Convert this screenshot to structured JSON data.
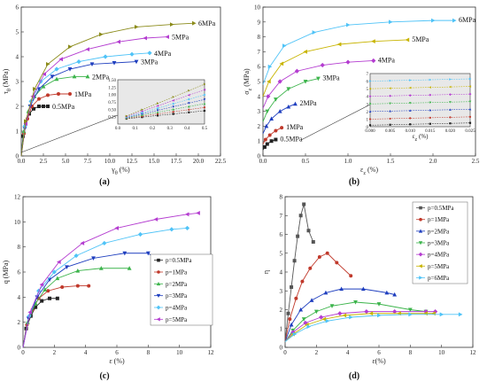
{
  "panels": [
    {
      "id": "a",
      "label": "(a)",
      "type": "line",
      "xlabel": "γ_θ (%)",
      "ylabel": "τ_θ (MPa)",
      "xlim": [
        0,
        22.5
      ],
      "ylim": [
        0,
        6
      ],
      "xticks": [
        "0.0",
        "2.5",
        "5.0",
        "7.5",
        "10.0",
        "12.5",
        "15.0",
        "17.5",
        "20.0",
        "22.5"
      ],
      "xtickv": [
        0,
        2.5,
        5,
        7.5,
        10,
        12.5,
        15,
        17.5,
        20,
        22.5
      ],
      "yticks": [
        "0",
        "1",
        "2",
        "3",
        "4",
        "5",
        "6"
      ],
      "ytickv": [
        0,
        1,
        2,
        3,
        4,
        5,
        6
      ],
      "series": [
        {
          "name": "0.5MPa",
          "color": "#222222",
          "marker": "square",
          "x": [
            0,
            0.2,
            0.5,
            0.9,
            1.4,
            2.0,
            2.5,
            3.0
          ],
          "y": [
            0,
            0.8,
            1.3,
            1.7,
            1.9,
            2.0,
            2.0,
            2.0
          ]
        },
        {
          "name": "1MPa",
          "color": "#c0392b",
          "marker": "circle",
          "x": [
            0,
            0.3,
            0.7,
            1.2,
            2.0,
            3.0,
            4.2,
            5.5
          ],
          "y": [
            0,
            0.9,
            1.5,
            2.0,
            2.3,
            2.45,
            2.5,
            2.5
          ]
        },
        {
          "name": "2MPa",
          "color": "#3cb44b",
          "marker": "triangle",
          "x": [
            0,
            0.3,
            0.8,
            1.5,
            2.5,
            4.0,
            6.0,
            7.5
          ],
          "y": [
            0,
            1.0,
            1.8,
            2.4,
            2.8,
            3.1,
            3.2,
            3.2
          ]
        },
        {
          "name": "3MPa",
          "color": "#1f3fbf",
          "marker": "triangle-down",
          "x": [
            0,
            0.4,
            1.0,
            2.0,
            3.5,
            5.5,
            8.0,
            10.5,
            13.0
          ],
          "y": [
            0,
            1.1,
            2.0,
            2.7,
            3.2,
            3.5,
            3.7,
            3.75,
            3.8
          ]
        },
        {
          "name": "4MPa",
          "color": "#4fc3f7",
          "marker": "diamond",
          "x": [
            0,
            0.4,
            1.1,
            2.2,
            4.0,
            6.5,
            9.5,
            12.5,
            14.5
          ],
          "y": [
            0,
            1.2,
            2.2,
            3.0,
            3.5,
            3.8,
            4.0,
            4.1,
            4.15
          ]
        },
        {
          "name": "5MPa",
          "color": "#b43cd0",
          "marker": "triangle-left",
          "x": [
            0,
            0.5,
            1.3,
            2.6,
            4.5,
            7.5,
            11.0,
            14.0,
            16.5
          ],
          "y": [
            0,
            1.3,
            2.4,
            3.3,
            3.9,
            4.3,
            4.6,
            4.75,
            4.8
          ]
        },
        {
          "name": "6MPa",
          "color": "#8b8b1a",
          "marker": "triangle-right",
          "x": [
            0,
            0.5,
            1.5,
            3.0,
            5.5,
            9.0,
            13.0,
            17.0,
            19.5
          ],
          "y": [
            0,
            1.4,
            2.7,
            3.7,
            4.4,
            4.9,
            5.2,
            5.3,
            5.35
          ]
        }
      ],
      "inset": {
        "xlim": [
          0,
          0.5
        ],
        "ylim": [
          0,
          1.5
        ],
        "xticks": [
          "0.0",
          "0.1",
          "0.2",
          "0.3",
          "0.4",
          "0.5"
        ],
        "xtickv": [
          0,
          0.1,
          0.2,
          0.3,
          0.4,
          0.5
        ],
        "yticks": [
          "0.25",
          "0.50",
          "0.75",
          "1.00",
          "1.25",
          "1.50"
        ],
        "ytickv": [
          0.25,
          0.5,
          0.75,
          1.0,
          1.25,
          1.5
        ]
      }
    },
    {
      "id": "b",
      "label": "(b)",
      "type": "line",
      "xlabel": "ε_z (%)",
      "ylabel": "σ_z (MPa)",
      "xlim": [
        0,
        2.5
      ],
      "ylim": [
        0,
        10
      ],
      "xticks": [
        "0.0",
        "0.5",
        "1.0",
        "1.5",
        "2.0",
        "2.5"
      ],
      "xtickv": [
        0,
        0.5,
        1.0,
        1.5,
        2.0,
        2.5
      ],
      "yticks": [
        "0",
        "1",
        "2",
        "3",
        "4",
        "5",
        "6",
        "7",
        "8",
        "9",
        "10"
      ],
      "ytickv": [
        0,
        1,
        2,
        3,
        4,
        5,
        6,
        7,
        8,
        9,
        10
      ],
      "series": [
        {
          "name": "0.5MPa",
          "color": "#222222",
          "marker": "square",
          "x": [
            0,
            0.02,
            0.05,
            0.1,
            0.15
          ],
          "y": [
            0.4,
            0.6,
            0.8,
            1.0,
            1.1
          ]
        },
        {
          "name": "1MPa",
          "color": "#c0392b",
          "marker": "circle",
          "x": [
            0,
            0.03,
            0.08,
            0.15,
            0.22
          ],
          "y": [
            0.8,
            1.1,
            1.4,
            1.7,
            1.9
          ]
        },
        {
          "name": "2MPa",
          "color": "#1f3fbf",
          "marker": "triangle",
          "x": [
            0,
            0.04,
            0.1,
            0.2,
            0.3,
            0.38
          ],
          "y": [
            1.5,
            2.0,
            2.5,
            3.0,
            3.3,
            3.5
          ]
        },
        {
          "name": "3MPa",
          "color": "#3cb44b",
          "marker": "triangle-down",
          "x": [
            0,
            0.05,
            0.15,
            0.3,
            0.5,
            0.65
          ],
          "y": [
            2.3,
            3.0,
            3.8,
            4.5,
            5.0,
            5.2
          ]
        },
        {
          "name": "4MPa",
          "color": "#b43cd0",
          "marker": "diamond",
          "x": [
            0,
            0.06,
            0.2,
            0.4,
            0.7,
            1.0,
            1.3
          ],
          "y": [
            3.2,
            4.0,
            5.0,
            5.7,
            6.1,
            6.3,
            6.4
          ]
        },
        {
          "name": "5MPa",
          "color": "#c8b400",
          "marker": "triangle-left",
          "x": [
            0,
            0.07,
            0.22,
            0.5,
            0.9,
            1.3,
            1.7
          ],
          "y": [
            4.0,
            5.0,
            6.2,
            7.0,
            7.5,
            7.7,
            7.8
          ]
        },
        {
          "name": "6MPa",
          "color": "#4fc3f7",
          "marker": "triangle-right",
          "x": [
            0,
            0.08,
            0.25,
            0.6,
            1.0,
            1.5,
            2.0,
            2.25
          ],
          "y": [
            4.8,
            6.0,
            7.4,
            8.3,
            8.8,
            9.0,
            9.1,
            9.1
          ]
        }
      ],
      "inset": {
        "xlim": [
          0,
          0.025
        ],
        "ylim": [
          0,
          7
        ],
        "xticks": [
          "0.000",
          "0.005",
          "0.010",
          "0.015",
          "0.020",
          "0.025"
        ],
        "xtickv": [
          0,
          0.005,
          0.01,
          0.015,
          0.02,
          0.025
        ],
        "yticks": [
          "0",
          "1",
          "2",
          "3",
          "4",
          "5",
          "6",
          "7"
        ],
        "ytickv": [
          0,
          1,
          2,
          3,
          4,
          5,
          6,
          7
        ],
        "xlabel": "ε_z (%)"
      }
    },
    {
      "id": "c",
      "label": "(c)",
      "type": "line",
      "xlabel": "ε (%)",
      "ylabel": "q (MPa)",
      "xlim": [
        0,
        12
      ],
      "ylim": [
        0,
        12
      ],
      "xticks": [
        "0",
        "2",
        "4",
        "6",
        "8",
        "10",
        "12"
      ],
      "xtickv": [
        0,
        2,
        4,
        6,
        8,
        10,
        12
      ],
      "yticks": [
        "0",
        "2",
        "4",
        "6",
        "8",
        "10",
        "12"
      ],
      "ytickv": [
        0,
        2,
        4,
        6,
        8,
        10,
        12
      ],
      "series": [
        {
          "name": "p=0.5MPa",
          "color": "#222222",
          "marker": "square",
          "x": [
            0,
            0.2,
            0.5,
            0.8,
            1.2,
            1.7,
            2.2
          ],
          "y": [
            0,
            1.5,
            2.5,
            3.2,
            3.7,
            3.9,
            3.9
          ]
        },
        {
          "name": "p=1MPa",
          "color": "#c0392b",
          "marker": "circle",
          "x": [
            0,
            0.25,
            0.6,
            1.0,
            1.6,
            2.5,
            3.5,
            4.2
          ],
          "y": [
            0,
            1.8,
            3.0,
            3.9,
            4.5,
            4.8,
            4.9,
            4.9
          ]
        },
        {
          "name": "p=2MPa",
          "color": "#3cb44b",
          "marker": "triangle",
          "x": [
            0,
            0.3,
            0.8,
            1.4,
            2.2,
            3.5,
            5.0,
            6.8
          ],
          "y": [
            0,
            2.0,
            3.5,
            4.6,
            5.5,
            6.1,
            6.3,
            6.3
          ]
        },
        {
          "name": "p=3MPa",
          "color": "#1f3fbf",
          "marker": "triangle-down",
          "x": [
            0,
            0.35,
            0.9,
            1.7,
            2.8,
            4.5,
            6.5,
            8.0,
            8.8
          ],
          "y": [
            0,
            2.3,
            4.0,
            5.4,
            6.4,
            7.1,
            7.5,
            7.5,
            6.8
          ]
        },
        {
          "name": "p=4MPa",
          "color": "#4fc3f7",
          "marker": "diamond",
          "x": [
            0,
            0.4,
            1.0,
            2.0,
            3.4,
            5.2,
            7.5,
            9.5,
            10.5
          ],
          "y": [
            0,
            2.5,
            4.5,
            6.0,
            7.3,
            8.3,
            9.0,
            9.4,
            9.5
          ]
        },
        {
          "name": "p=5MPa",
          "color": "#b43cd0",
          "marker": "triangle-left",
          "x": [
            0,
            0.45,
            1.2,
            2.3,
            3.8,
            6.0,
            8.5,
            10.5,
            11.2
          ],
          "y": [
            0,
            2.8,
            5.0,
            6.8,
            8.3,
            9.5,
            10.2,
            10.6,
            10.7
          ]
        }
      ]
    },
    {
      "id": "d",
      "label": "(d)",
      "type": "line",
      "xlabel": "ε(%)",
      "ylabel": "η",
      "xlim": [
        0,
        12
      ],
      "ylim": [
        0,
        8
      ],
      "xticks": [
        "0",
        "2",
        "4",
        "6",
        "8",
        "10",
        "12"
      ],
      "xtickv": [
        0,
        2,
        4,
        6,
        8,
        10,
        12
      ],
      "yticks": [
        "0",
        "1",
        "2",
        "3",
        "4",
        "5",
        "6",
        "7",
        "8"
      ],
      "ytickv": [
        0,
        1,
        2,
        3,
        4,
        5,
        6,
        7,
        8
      ],
      "series": [
        {
          "name": "p=0.5MPa",
          "color": "#555555",
          "marker": "square",
          "x": [
            0,
            0.2,
            0.4,
            0.6,
            0.8,
            1.0,
            1.2,
            1.5,
            1.8
          ],
          "y": [
            0.3,
            1.8,
            3.2,
            4.6,
            5.9,
            7.0,
            7.6,
            6.2,
            5.6
          ]
        },
        {
          "name": "p=1MPa",
          "color": "#c0392b",
          "marker": "circle",
          "x": [
            0,
            0.3,
            0.7,
            1.1,
            1.6,
            2.2,
            2.7,
            3.3,
            4.2
          ],
          "y": [
            0.3,
            1.5,
            2.6,
            3.5,
            4.2,
            4.8,
            5.0,
            4.5,
            3.8
          ]
        },
        {
          "name": "p=2MPa",
          "color": "#1f3fbf",
          "marker": "triangle",
          "x": [
            0,
            0.4,
            1.0,
            1.7,
            2.6,
            3.6,
            5.0,
            6.5,
            7.0
          ],
          "y": [
            0.3,
            1.2,
            2.0,
            2.5,
            2.9,
            3.1,
            3.1,
            2.9,
            2.8
          ]
        },
        {
          "name": "p=3MPa",
          "color": "#3cb44b",
          "marker": "triangle-down",
          "x": [
            0,
            0.5,
            1.2,
            2.0,
            3.0,
            4.5,
            6.0,
            8.0,
            9.0
          ],
          "y": [
            0.3,
            0.9,
            1.5,
            1.9,
            2.2,
            2.4,
            2.3,
            2.0,
            1.9
          ]
        },
        {
          "name": "p=4MPa",
          "color": "#b43cd0",
          "marker": "diamond",
          "x": [
            0,
            0.5,
            1.3,
            2.3,
            3.5,
            5.2,
            7.0,
            9.0,
            9.6
          ],
          "y": [
            0.3,
            0.8,
            1.3,
            1.6,
            1.8,
            1.9,
            1.9,
            1.9,
            1.9
          ]
        },
        {
          "name": "p=5MPa",
          "color": "#c8b400",
          "marker": "triangle-left",
          "x": [
            0,
            0.5,
            1.4,
            2.5,
            3.8,
            5.5,
            7.3,
            9.0,
            9.5
          ],
          "y": [
            0.3,
            0.7,
            1.2,
            1.5,
            1.7,
            1.8,
            1.8,
            1.8,
            1.8
          ]
        },
        {
          "name": "p=6MPa",
          "color": "#4fc3f7",
          "marker": "triangle-right",
          "x": [
            0,
            0.6,
            1.5,
            2.7,
            4.2,
            6.0,
            8.0,
            10.0,
            11.2
          ],
          "y": [
            0.3,
            0.7,
            1.1,
            1.4,
            1.6,
            1.7,
            1.75,
            1.75,
            1.75
          ]
        }
      ]
    }
  ],
  "chart_data": [
    {
      "type": "line",
      "title": "",
      "xlabel": "γθ (%)",
      "ylabel": "τθ (MPa)",
      "xlim": [
        0,
        22.5
      ],
      "ylim": [
        0,
        6
      ],
      "series_names": [
        "0.5MPa",
        "1MPa",
        "2MPa",
        "3MPa",
        "4MPa",
        "5MPa",
        "6MPa"
      ]
    },
    {
      "type": "line",
      "title": "",
      "xlabel": "εz (%)",
      "ylabel": "σz (MPa)",
      "xlim": [
        0,
        2.5
      ],
      "ylim": [
        0,
        10
      ],
      "series_names": [
        "0.5MPa",
        "1MPa",
        "2MPa",
        "3MPa",
        "4MPa",
        "5MPa",
        "6MPa"
      ]
    },
    {
      "type": "line",
      "title": "",
      "xlabel": "ε (%)",
      "ylabel": "q (MPa)",
      "xlim": [
        0,
        12
      ],
      "ylim": [
        0,
        12
      ],
      "series_names": [
        "p=0.5MPa",
        "p=1MPa",
        "p=2MPa",
        "p=3MPa",
        "p=4MPa",
        "p=5MPa"
      ]
    },
    {
      "type": "line",
      "title": "",
      "xlabel": "ε(%)",
      "ylabel": "η",
      "xlim": [
        0,
        12
      ],
      "ylim": [
        0,
        8
      ],
      "series_names": [
        "p=0.5MPa",
        "p=1MPa",
        "p=2MPa",
        "p=3MPa",
        "p=4MPa",
        "p=5MPa",
        "p=6MPa"
      ]
    }
  ]
}
